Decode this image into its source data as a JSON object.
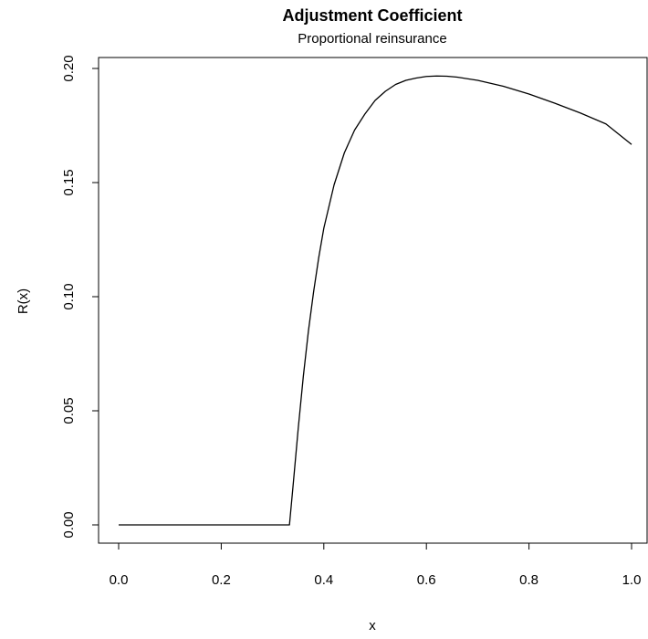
{
  "chart_data": {
    "type": "line",
    "title": "Adjustment Coefficient",
    "subtitle": "Proportional reinsurance",
    "xlabel": "x",
    "ylabel": "R(x)",
    "xlim": [
      0,
      1
    ],
    "ylim": [
      0,
      0.2
    ],
    "xticks": [
      "0.0",
      "0.2",
      "0.4",
      "0.6",
      "0.8",
      "1.0"
    ],
    "yticks": [
      "0.00",
      "0.05",
      "0.10",
      "0.15",
      "0.20"
    ],
    "grid": false,
    "legend": "none",
    "line_color": "#000000",
    "series": [
      {
        "x": [
          0.0,
          0.1,
          0.2,
          0.3,
          0.333,
          0.34,
          0.35,
          0.36,
          0.37,
          0.38,
          0.39,
          0.4,
          0.42,
          0.44,
          0.46,
          0.48,
          0.5,
          0.52,
          0.54,
          0.56,
          0.58,
          0.6,
          0.62,
          0.64,
          0.66,
          0.7,
          0.75,
          0.8,
          0.85,
          0.9,
          0.95,
          1.0
        ],
        "y": [
          0.0,
          0.0,
          0.0,
          0.0,
          0.0,
          0.017,
          0.042,
          0.065,
          0.085,
          0.102,
          0.117,
          0.13,
          0.149,
          0.163,
          0.173,
          0.18,
          0.186,
          0.19,
          0.193,
          0.1948,
          0.1958,
          0.1965,
          0.1967,
          0.1966,
          0.1962,
          0.1948,
          0.1922,
          0.1888,
          0.1848,
          0.1805,
          0.1757,
          0.1667
        ]
      }
    ]
  }
}
